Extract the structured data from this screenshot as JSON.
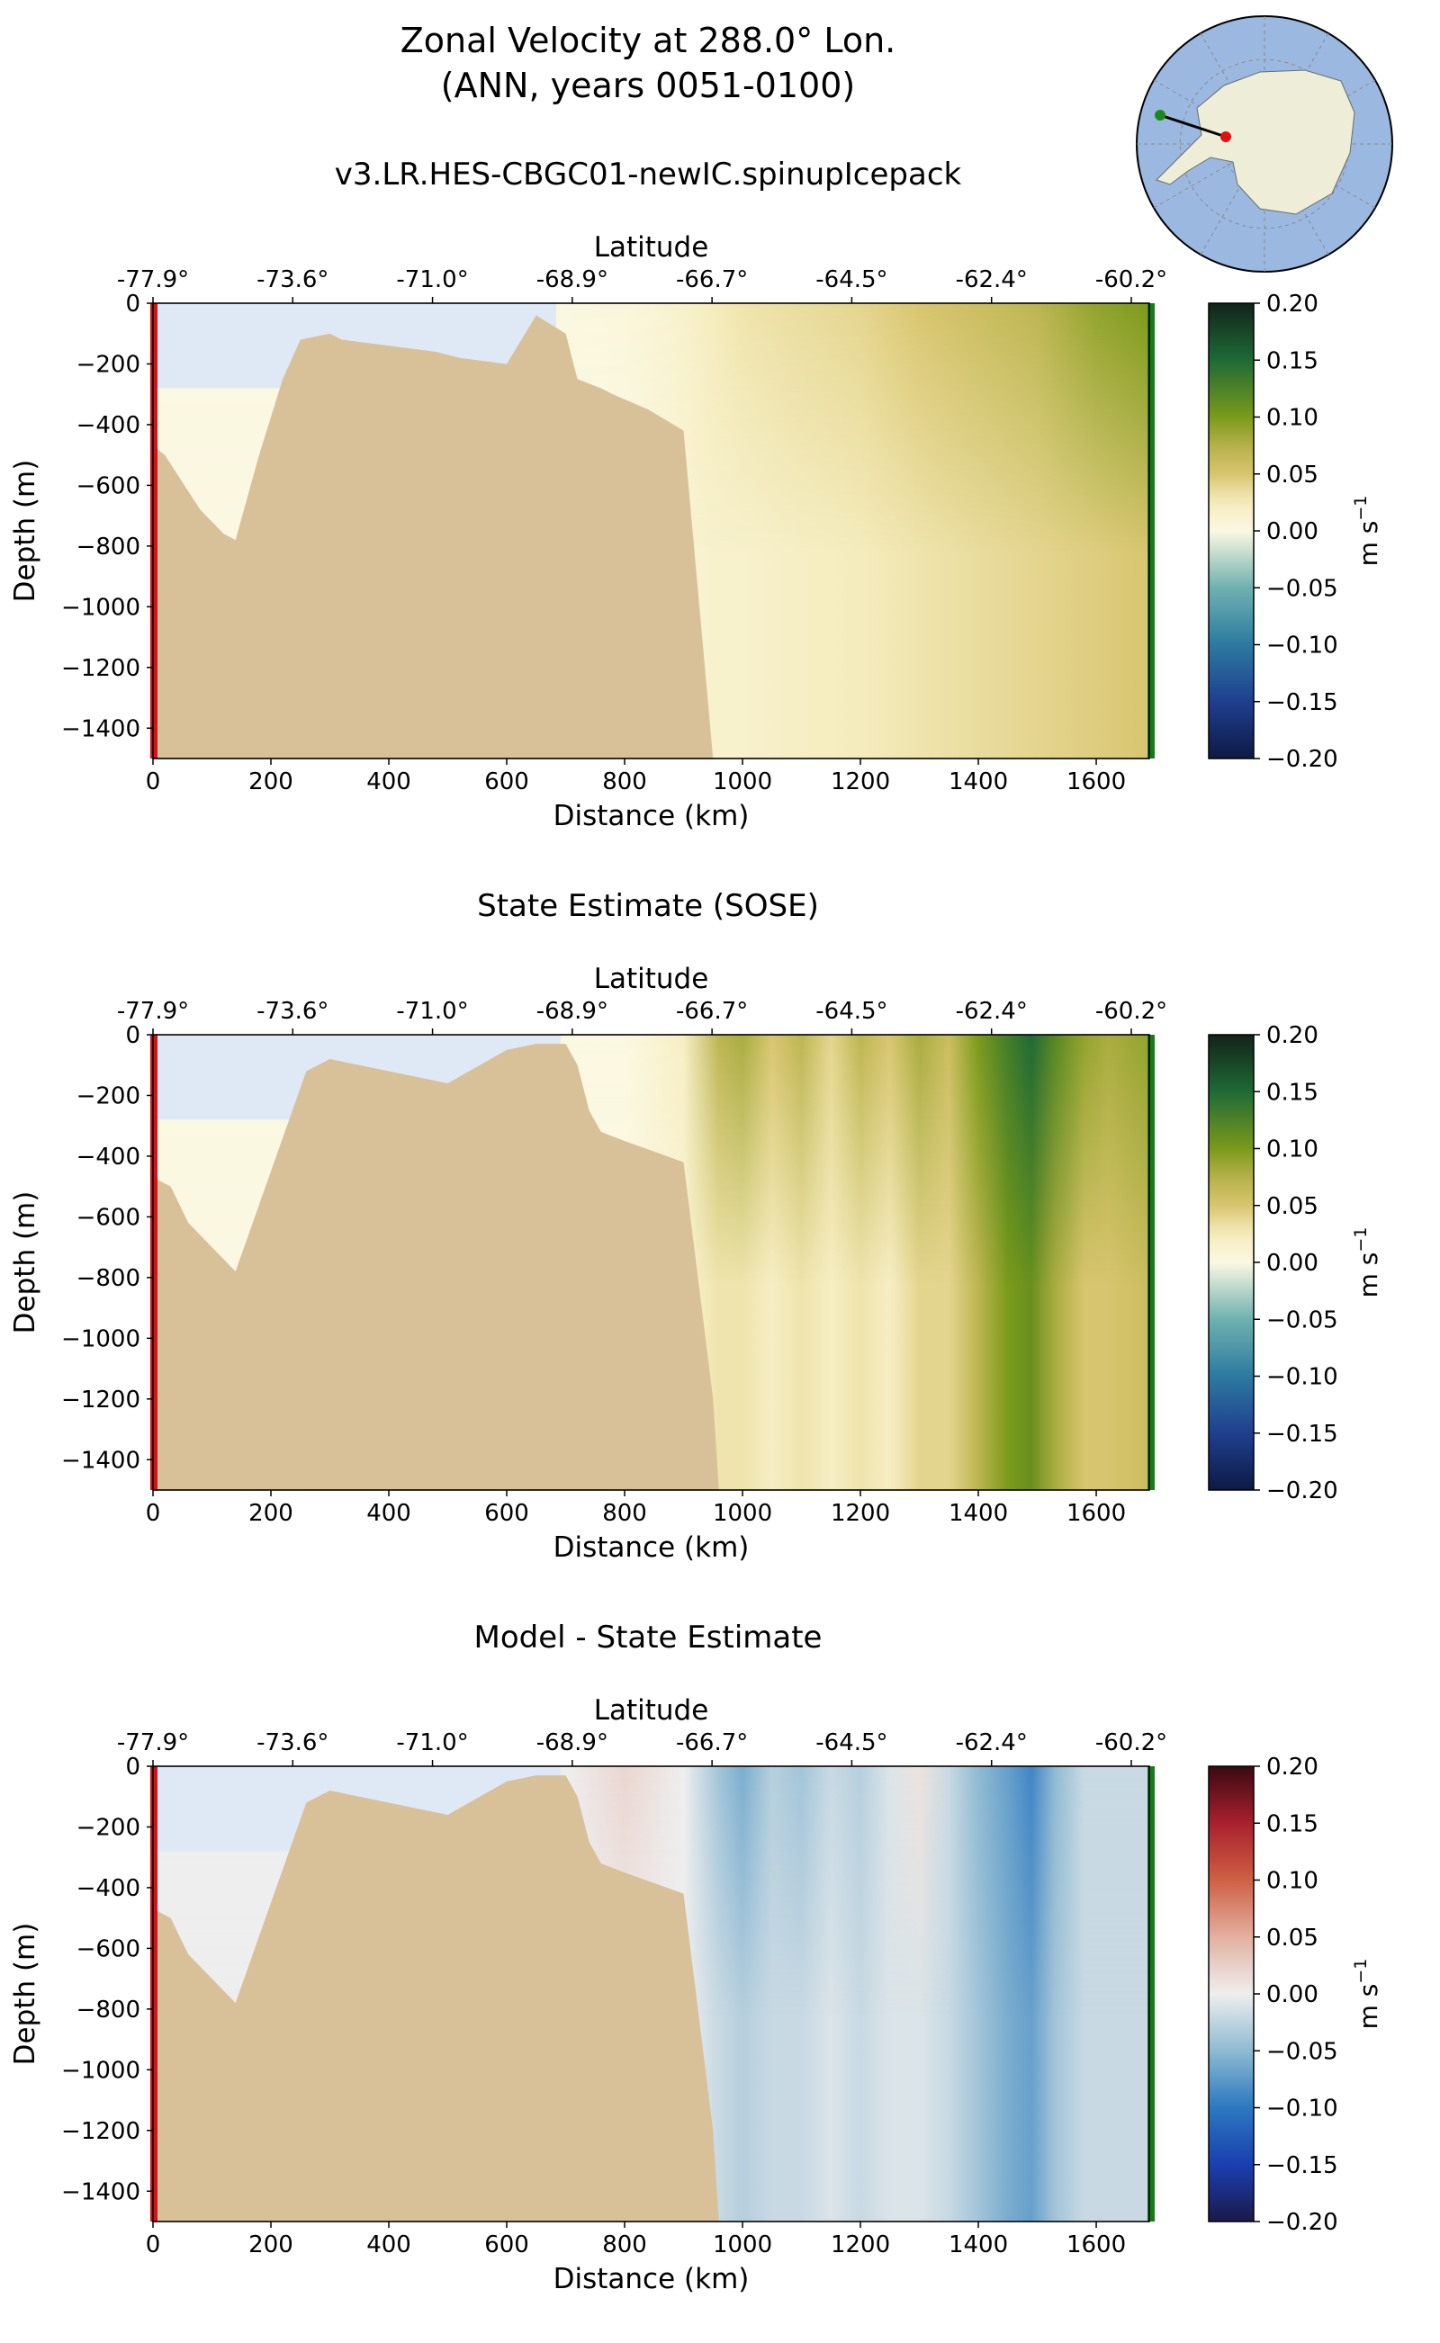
{
  "figure": {
    "title_line1": "Zonal Velocity at 288.0° Lon.",
    "title_line2": "(ANN, years 0051-0100)",
    "units_label": "m s",
    "units_exp": "−1"
  },
  "inset_map": {
    "type": "south-polar-map",
    "ocean_color": "#9ab8e0",
    "land_color": "#eeeed8",
    "transect_start_marker_color": "#1b8a1b",
    "transect_end_marker_color": "#e01010"
  },
  "colors": {
    "land": "#d8c198",
    "ice_shelf": "#dfe8f5",
    "start_bar": "#d0141a",
    "end_bar": "#1a7a1a"
  },
  "chart_data": [
    {
      "type": "heatmap",
      "title": "v3.LR.HES-CBGC01-newIC.spinupIcepack",
      "xlabel": "Distance (km)",
      "ylabel": "Depth (m)",
      "top_axis_label": "Latitude",
      "xlim": [
        0,
        1690
      ],
      "ylim": [
        -1500,
        0
      ],
      "xticks": [
        "0",
        "200",
        "400",
        "600",
        "800",
        "1000",
        "1200",
        "1400",
        "1600"
      ],
      "yticks": [
        "0",
        "−200",
        "−400",
        "−600",
        "−800",
        "−1000",
        "−1200",
        "−1400"
      ],
      "lat_ticks": [
        "-77.9°",
        "-73.6°",
        "-71.0°",
        "-68.9°",
        "-66.7°",
        "-64.5°",
        "-62.4°",
        "-60.2°"
      ],
      "colorbar": {
        "min": -0.2,
        "max": 0.2,
        "ticks": [
          "0.20",
          "0.15",
          "0.10",
          "0.05",
          "0.00",
          "−0.05",
          "−0.10",
          "−0.15",
          "−0.20"
        ],
        "colormap": "velocity_green_blue"
      },
      "velocity_profile": {
        "distance_km": [
          650,
          800,
          900,
          950,
          1000,
          1100,
          1200,
          1300,
          1400,
          1500,
          1600,
          1690
        ],
        "surface_m_s": [
          0.0,
          0.005,
          0.015,
          0.025,
          0.03,
          0.035,
          0.04,
          0.05,
          0.06,
          0.07,
          0.09,
          0.1
        ],
        "deep_m_s": [
          0.0,
          0.0,
          0.01,
          0.015,
          0.015,
          0.02,
          0.025,
          0.03,
          0.035,
          0.04,
          0.045,
          0.05
        ]
      },
      "bathymetry": {
        "distance_km": [
          0,
          20,
          40,
          60,
          80,
          100,
          120,
          140,
          180,
          220,
          250,
          300,
          320,
          400,
          480,
          520,
          600,
          650,
          700,
          720,
          760,
          780,
          840,
          900,
          950
        ],
        "bottom_depth_m": [
          -470,
          -500,
          -560,
          -620,
          -680,
          -720,
          -760,
          -780,
          -500,
          -250,
          -120,
          -100,
          -120,
          -140,
          -160,
          -180,
          -200,
          -40,
          -100,
          -250,
          -280,
          -300,
          -350,
          -420,
          -1500
        ]
      }
    },
    {
      "type": "heatmap",
      "title": "State Estimate (SOSE)",
      "xlabel": "Distance (km)",
      "ylabel": "Depth (m)",
      "top_axis_label": "Latitude",
      "xlim": [
        0,
        1690
      ],
      "ylim": [
        -1500,
        0
      ],
      "xticks": [
        "0",
        "200",
        "400",
        "600",
        "800",
        "1000",
        "1200",
        "1400",
        "1600"
      ],
      "yticks": [
        "0",
        "−200",
        "−400",
        "−600",
        "−800",
        "−1000",
        "−1200",
        "−1400"
      ],
      "lat_ticks": [
        "-77.9°",
        "-73.6°",
        "-71.0°",
        "-68.9°",
        "-66.7°",
        "-64.5°",
        "-62.4°",
        "-60.2°"
      ],
      "colorbar": {
        "min": -0.2,
        "max": 0.2,
        "ticks": [
          "0.20",
          "0.15",
          "0.10",
          "0.05",
          "0.00",
          "−0.05",
          "−0.10",
          "−0.15",
          "−0.20"
        ],
        "colormap": "velocity_green_blue"
      },
      "velocity_profile": {
        "distance_km": [
          700,
          800,
          900,
          960,
          1000,
          1050,
          1100,
          1150,
          1200,
          1250,
          1300,
          1350,
          1400,
          1450,
          1490,
          1530,
          1580,
          1620,
          1690
        ],
        "surface_m_s": [
          0.0,
          0.0,
          0.02,
          0.07,
          0.08,
          0.05,
          0.07,
          0.04,
          0.07,
          0.05,
          0.08,
          0.06,
          0.1,
          0.13,
          0.15,
          0.12,
          0.09,
          0.08,
          0.09
        ],
        "deep_m_s": [
          0.0,
          0.0,
          0.01,
          0.03,
          0.03,
          0.02,
          0.03,
          0.02,
          0.03,
          0.02,
          0.04,
          0.04,
          0.07,
          0.1,
          0.11,
          0.08,
          0.05,
          0.05,
          0.06
        ]
      },
      "bathymetry": {
        "distance_km": [
          0,
          30,
          60,
          100,
          140,
          200,
          260,
          300,
          400,
          500,
          600,
          650,
          700,
          720,
          740,
          760,
          800,
          900,
          950,
          960
        ],
        "bottom_depth_m": [
          -470,
          -500,
          -620,
          -700,
          -780,
          -450,
          -120,
          -80,
          -120,
          -160,
          -50,
          -30,
          -30,
          -100,
          -250,
          -320,
          -350,
          -420,
          -1200,
          -1500
        ]
      }
    },
    {
      "type": "heatmap",
      "title": "Model - State Estimate",
      "xlabel": "Distance (km)",
      "ylabel": "Depth (m)",
      "top_axis_label": "Latitude",
      "xlim": [
        0,
        1690
      ],
      "ylim": [
        -1500,
        0
      ],
      "xticks": [
        "0",
        "200",
        "400",
        "600",
        "800",
        "1000",
        "1200",
        "1400",
        "1600"
      ],
      "yticks": [
        "0",
        "−200",
        "−400",
        "−600",
        "−800",
        "−1000",
        "−1200",
        "−1400"
      ],
      "lat_ticks": [
        "-77.9°",
        "-73.6°",
        "-71.0°",
        "-68.9°",
        "-66.7°",
        "-64.5°",
        "-62.4°",
        "-60.2°"
      ],
      "colorbar": {
        "min": -0.2,
        "max": 0.2,
        "ticks": [
          "0.20",
          "0.15",
          "0.10",
          "0.05",
          "0.00",
          "−0.05",
          "−0.10",
          "−0.15",
          "−0.20"
        ],
        "colormap": "difference_red_blue"
      },
      "velocity_profile": {
        "distance_km": [
          700,
          800,
          900,
          960,
          1000,
          1050,
          1100,
          1150,
          1200,
          1250,
          1300,
          1350,
          1400,
          1450,
          1490,
          1530,
          1580,
          1620,
          1690
        ],
        "surface_m_s": [
          0.0,
          0.02,
          0.0,
          -0.04,
          -0.06,
          -0.03,
          -0.04,
          -0.02,
          -0.03,
          -0.01,
          0.01,
          -0.02,
          -0.05,
          -0.07,
          -0.09,
          -0.05,
          -0.02,
          -0.02,
          -0.02
        ],
        "deep_m_s": [
          0.0,
          0.0,
          0.0,
          -0.02,
          -0.03,
          -0.02,
          -0.02,
          -0.01,
          -0.02,
          -0.01,
          -0.01,
          -0.02,
          -0.04,
          -0.06,
          -0.07,
          -0.04,
          -0.02,
          -0.02,
          -0.02
        ]
      },
      "bathymetry": {
        "distance_km": [
          0,
          30,
          60,
          100,
          140,
          200,
          260,
          300,
          400,
          500,
          600,
          650,
          700,
          720,
          740,
          760,
          800,
          900,
          950,
          960
        ],
        "bottom_depth_m": [
          -470,
          -500,
          -620,
          -700,
          -780,
          -450,
          -120,
          -80,
          -120,
          -160,
          -50,
          -30,
          -30,
          -100,
          -250,
          -320,
          -350,
          -420,
          -1200,
          -1500
        ]
      }
    }
  ]
}
